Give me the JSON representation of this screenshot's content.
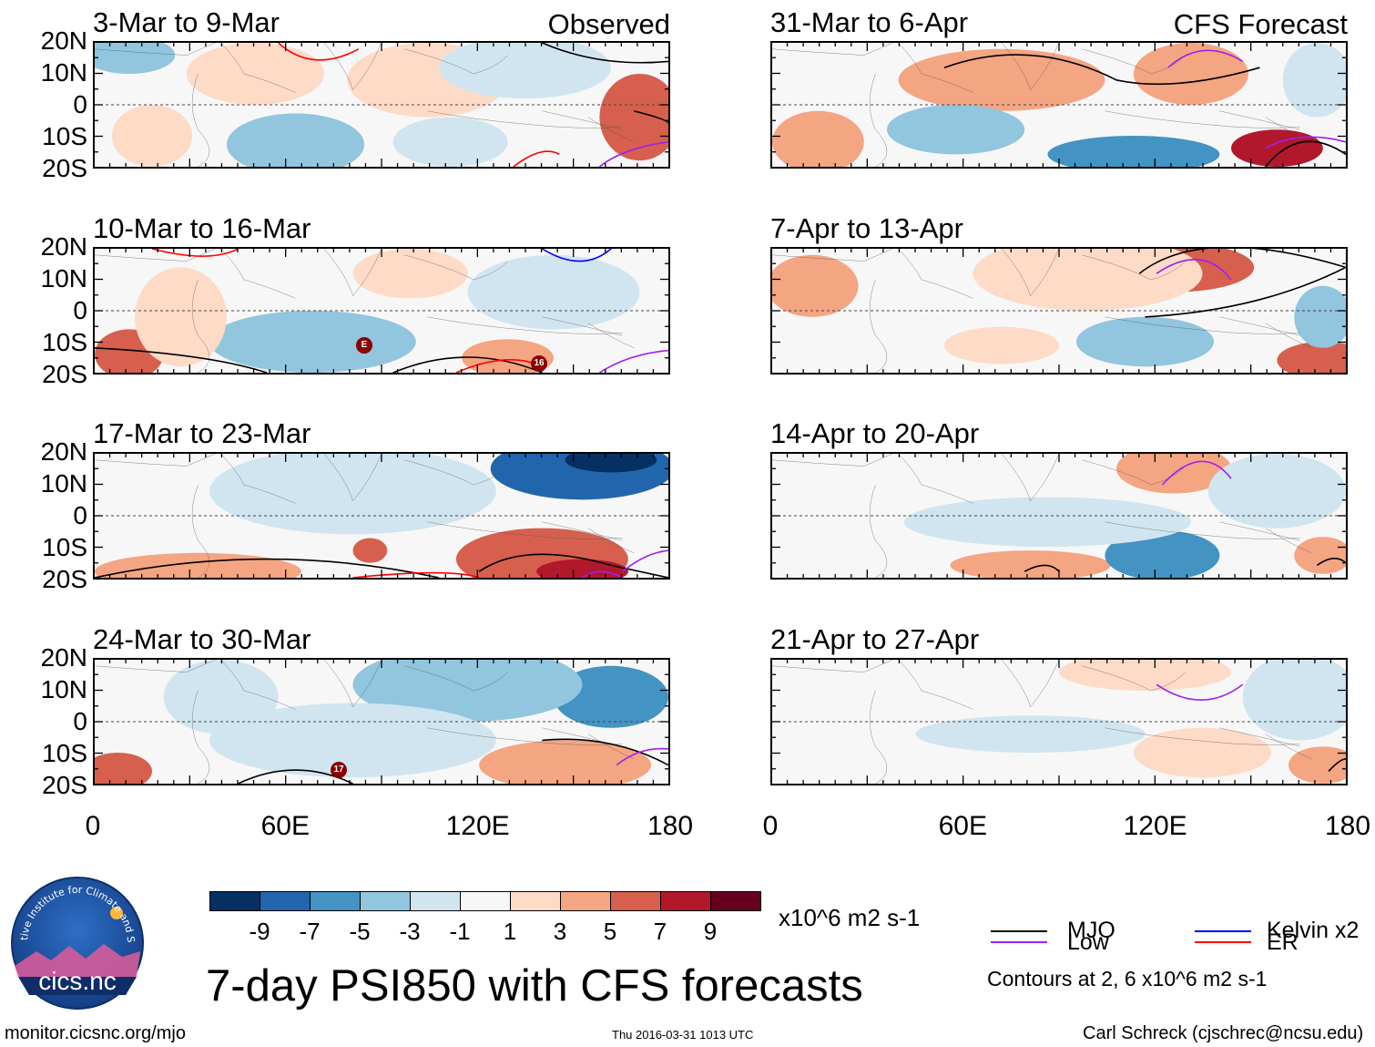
{
  "colors": {
    "neutral": "#f7f7f7",
    "blue1": "#d1e5f0",
    "blue2": "#92c5de",
    "blue3": "#4393c3",
    "blue4": "#2166ac",
    "blue5": "#053061",
    "red1": "#fddbc7",
    "red2": "#f4a582",
    "red3": "#d6604d",
    "red4": "#b2182b",
    "red5": "#67001f",
    "mjo": "#000000",
    "low": "#a020f0",
    "kelvin": "#0000ff",
    "er": "#ff0000"
  },
  "axes": {
    "lat_ticks": [
      "20N",
      "10N",
      "0",
      "10S",
      "20S"
    ],
    "lon_ticks": [
      "0",
      "60E",
      "120E",
      "180"
    ]
  },
  "header": {
    "observed": "Observed",
    "forecast": "CFS Forecast"
  },
  "panels_left": [
    {
      "title": "3-Mar to 9-Mar"
    },
    {
      "title": "10-Mar to 16-Mar"
    },
    {
      "title": "17-Mar to 23-Mar"
    },
    {
      "title": "24-Mar to 30-Mar"
    }
  ],
  "panels_right": [
    {
      "title": "31-Mar to 6-Apr"
    },
    {
      "title": "7-Apr to 13-Apr"
    },
    {
      "title": "14-Apr to 20-Apr"
    },
    {
      "title": "21-Apr to 27-Apr"
    }
  ],
  "storm_labels": [
    "E",
    "16",
    "17"
  ],
  "colorbar": {
    "labels": [
      "-9",
      "-7",
      "-5",
      "-3",
      "-1",
      "1",
      "3",
      "5",
      "7",
      "9"
    ],
    "units": "x10^6 m2 s-1"
  },
  "legend": {
    "mjo": "MJO",
    "kelvin": "Kelvin x2",
    "low": "Low",
    "er": "ER",
    "note": "Contours at 2, 6 x10^6 m2 s-1"
  },
  "logo": {
    "arc_text": "Cooperative Institute for Climate and Satellites",
    "name": "cics.nc"
  },
  "main_title": "7-day PSI850 with CFS forecasts",
  "footer": {
    "url": "monitor.cicsnc.org/mjo",
    "timestamp": "Thu 2016-03-31 1013 UTC",
    "author": "Carl Schreck (cjschrec@ncsu.edu)"
  },
  "chart_data": {
    "type": "heatmap",
    "title": "7-day PSI850 with CFS forecasts",
    "variable": "PSI850 anomaly",
    "units": "x10^6 m2 s-1",
    "xlim": [
      0,
      180
    ],
    "ylim": [
      -20,
      20
    ],
    "x_ticks": [
      "0",
      "60E",
      "120E",
      "180"
    ],
    "y_ticks": [
      "20N",
      "10N",
      "0",
      "10S",
      "20S"
    ],
    "color_levels": [
      -9,
      -7,
      -5,
      -3,
      -1,
      1,
      3,
      5,
      7,
      9
    ],
    "contour_levels": [
      2,
      6
    ],
    "contour_series": [
      "MJO",
      "Low",
      "Kelvin x2",
      "ER"
    ],
    "panels": [
      {
        "period": "3-Mar to 9-Mar",
        "source": "Observed"
      },
      {
        "period": "10-Mar to 16-Mar",
        "source": "Observed"
      },
      {
        "period": "17-Mar to 23-Mar",
        "source": "Observed"
      },
      {
        "period": "24-Mar to 30-Mar",
        "source": "Observed"
      },
      {
        "period": "31-Mar to 6-Apr",
        "source": "CFS Forecast"
      },
      {
        "period": "7-Apr to 13-Apr",
        "source": "CFS Forecast"
      },
      {
        "period": "14-Apr to 20-Apr",
        "source": "CFS Forecast"
      },
      {
        "period": "21-Apr to 27-Apr",
        "source": "CFS Forecast"
      }
    ]
  }
}
